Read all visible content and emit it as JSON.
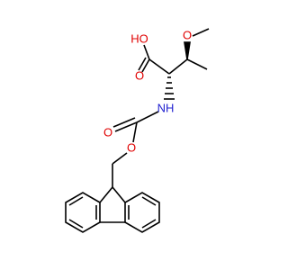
{
  "atoms": {
    "acid_oh": "HO",
    "acid_o": "O",
    "ether_o": "O",
    "amine": "NH",
    "carbonyl_o": "O",
    "ester_o": "O"
  }
}
